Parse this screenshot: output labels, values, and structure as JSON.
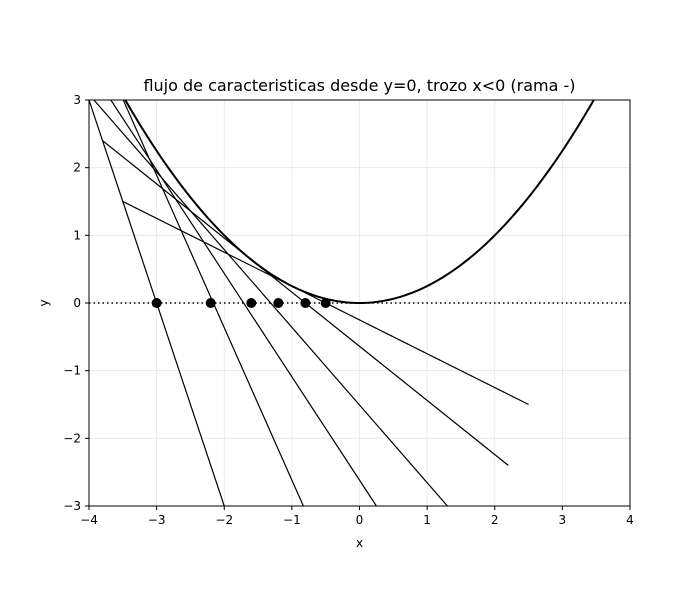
{
  "chart_data": {
    "type": "line",
    "title": "flujo de caracteristicas desde y=0, trozo x<0 (rama -)",
    "xlabel": "x",
    "ylabel": "y",
    "xlim": [
      -4,
      4
    ],
    "ylim": [
      -3,
      3
    ],
    "xticks": [
      -4,
      -3,
      -2,
      -1,
      0,
      1,
      2,
      3,
      4
    ],
    "yticks": [
      -3,
      -2,
      -1,
      0,
      1,
      2,
      3
    ],
    "xtick_labels": [
      "−4",
      "−3",
      "−2",
      "−1",
      "0",
      "1",
      "2",
      "3",
      "4"
    ],
    "ytick_labels": [
      "−3",
      "−2",
      "−1",
      "0",
      "1",
      "2",
      "3"
    ],
    "grid": true,
    "baseline": {
      "y": 0,
      "style": "dotted"
    },
    "parabola": {
      "equation_coefficient": 0.25,
      "x_range": [
        -4,
        4
      ]
    },
    "characteristics": [
      {
        "start": [
          -3.5,
          1.5
        ],
        "end": [
          2.5,
          -1.5
        ]
      },
      {
        "start": [
          -3.8,
          2.4
        ],
        "end": [
          2.2,
          -2.4
        ]
      },
      {
        "start": [
          -4.04,
          3.13
        ],
        "end": [
          1.3,
          -3.0
        ]
      },
      {
        "start": [
          -3.9,
          3.34
        ],
        "end": [
          0.25,
          -3.0
        ]
      },
      {
        "start": [
          -3.6,
          3.24
        ],
        "end": [
          -0.83,
          -3.0
        ]
      },
      {
        "start": [
          -4.0,
          3.0
        ],
        "end": [
          -2.0,
          -3.0
        ]
      }
    ],
    "points": [
      {
        "x": -3.0,
        "y": 0
      },
      {
        "x": -2.2,
        "y": 0
      },
      {
        "x": -1.6,
        "y": 0
      },
      {
        "x": -1.2,
        "y": 0
      },
      {
        "x": -0.8,
        "y": 0
      },
      {
        "x": -0.5,
        "y": 0
      }
    ]
  }
}
